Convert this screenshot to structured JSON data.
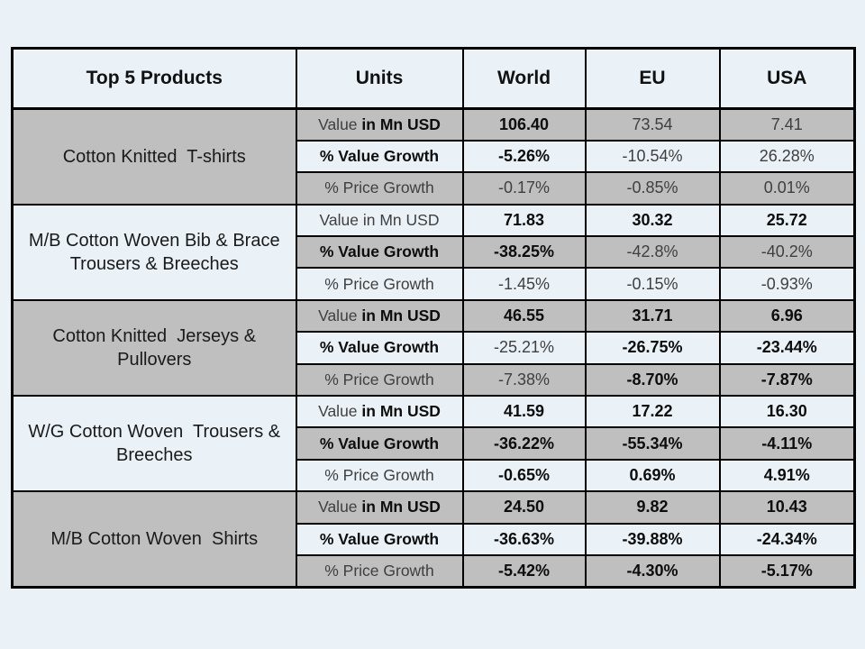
{
  "slide": {
    "background": "#eaf2f8"
  },
  "table": {
    "columns": [
      "Top 5 Products",
      "Units",
      "World",
      "EU",
      "USA"
    ],
    "colors": {
      "gray_row": "#bfbfbf",
      "light_row": "#eaf2f8",
      "header_bg": "#eaf2f8",
      "border": "#000000",
      "bold_text": "#0d0d0d",
      "regular_text": "#3f3f3f"
    },
    "unit_row_labels": [
      "Value in Mn USD",
      "% Value Growth",
      "% Price Growth"
    ],
    "products": [
      {
        "name": "Cotton Knitted  T-shirts",
        "rows": [
          {
            "units": [
              {
                "t": "Value ",
                "b": false
              },
              {
                "t": "in Mn USD",
                "b": true
              }
            ],
            "cells": [
              {
                "t": "106.40",
                "b": true
              },
              {
                "t": "73.54",
                "b": false
              },
              {
                "t": "7.41",
                "b": false
              }
            ]
          },
          {
            "units": [
              {
                "t": "% Value Growth",
                "b": true
              }
            ],
            "cells": [
              {
                "t": "-5.26%",
                "b": true
              },
              {
                "t": "-10.54%",
                "b": false
              },
              {
                "t": "26.28%",
                "b": false
              }
            ]
          },
          {
            "units": [
              {
                "t": "% Price Growth",
                "b": false
              }
            ],
            "cells": [
              {
                "t": "-0.17%",
                "b": false
              },
              {
                "t": "-0.85%",
                "b": false
              },
              {
                "t": "0.01%",
                "b": false
              }
            ]
          }
        ]
      },
      {
        "name": "M/B Cotton Woven Bib & Brace Trousers & Breeches",
        "rows": [
          {
            "units": [
              {
                "t": "Value in Mn USD",
                "b": false
              }
            ],
            "cells": [
              {
                "t": "71.83",
                "b": true
              },
              {
                "t": "30.32",
                "b": true
              },
              {
                "t": "25.72",
                "b": true
              }
            ]
          },
          {
            "units": [
              {
                "t": "% Value Growth",
                "b": true
              }
            ],
            "cells": [
              {
                "t": "-38.25%",
                "b": true
              },
              {
                "t": "-42.8%",
                "b": false
              },
              {
                "t": "-40.2%",
                "b": false
              }
            ]
          },
          {
            "units": [
              {
                "t": "% Price Growth",
                "b": false
              }
            ],
            "cells": [
              {
                "t": "-1.45%",
                "b": false
              },
              {
                "t": "-0.15%",
                "b": false
              },
              {
                "t": "-0.93%",
                "b": false
              }
            ]
          }
        ]
      },
      {
        "name": "Cotton Knitted  Jerseys & Pullovers",
        "rows": [
          {
            "units": [
              {
                "t": "Value ",
                "b": false
              },
              {
                "t": "in Mn USD",
                "b": true
              }
            ],
            "cells": [
              {
                "t": "46.55",
                "b": true
              },
              {
                "t": "31.71",
                "b": true
              },
              {
                "t": "6.96",
                "b": true
              }
            ]
          },
          {
            "units": [
              {
                "t": "% Value Growth",
                "b": true
              }
            ],
            "cells": [
              {
                "t": "-25.21%",
                "b": false
              },
              {
                "t": "-26.75%",
                "b": true
              },
              {
                "t": "-23.44%",
                "b": true
              }
            ]
          },
          {
            "units": [
              {
                "t": "% Price Growth",
                "b": false
              }
            ],
            "cells": [
              {
                "t": "-7.38%",
                "b": false
              },
              {
                "t": "-8.70%",
                "b": true
              },
              {
                "t": "-7.87%",
                "b": true
              }
            ]
          }
        ]
      },
      {
        "name": "W/G Cotton Woven  Trousers & Breeches",
        "rows": [
          {
            "units": [
              {
                "t": "Value ",
                "b": false
              },
              {
                "t": "in Mn USD",
                "b": true
              }
            ],
            "cells": [
              {
                "t": "41.59",
                "b": true
              },
              {
                "t": "17.22",
                "b": true
              },
              {
                "t": "16.30",
                "b": true
              }
            ]
          },
          {
            "units": [
              {
                "t": "% Value Growth",
                "b": true
              }
            ],
            "cells": [
              {
                "t": "-36.22%",
                "b": true
              },
              {
                "t": "-55.34%",
                "b": true
              },
              {
                "t": "-4.11%",
                "b": true
              }
            ]
          },
          {
            "units": [
              {
                "t": "% Price Growth",
                "b": false
              }
            ],
            "cells": [
              {
                "t": "-0.65%",
                "b": true
              },
              {
                "t": "0.69%",
                "b": true
              },
              {
                "t": "4.91%",
                "b": true
              }
            ]
          }
        ]
      },
      {
        "name": "M/B Cotton Woven  Shirts",
        "rows": [
          {
            "units": [
              {
                "t": "Value ",
                "b": false
              },
              {
                "t": "in Mn USD",
                "b": true
              }
            ],
            "cells": [
              {
                "t": "24.50",
                "b": true
              },
              {
                "t": "9.82",
                "b": true
              },
              {
                "t": "10.43",
                "b": true
              }
            ]
          },
          {
            "units": [
              {
                "t": "% Value Growth",
                "b": true
              }
            ],
            "cells": [
              {
                "t": "-36.63%",
                "b": true
              },
              {
                "t": "-39.88%",
                "b": true
              },
              {
                "t": "-24.34%",
                "b": true
              }
            ]
          },
          {
            "units": [
              {
                "t": "% Price Growth",
                "b": false
              }
            ],
            "cells": [
              {
                "t": "-5.42%",
                "b": true
              },
              {
                "t": "-4.30%",
                "b": true
              },
              {
                "t": "-5.17%",
                "b": true
              }
            ]
          }
        ]
      }
    ]
  },
  "chart_data": {
    "type": "table",
    "title": "Top 5 Products",
    "columns": [
      "Top 5 Products",
      "Units",
      "World",
      "EU",
      "USA"
    ],
    "rows": [
      [
        "Cotton Knitted T-shirts",
        "Value in Mn USD",
        "106.40",
        "73.54",
        "7.41"
      ],
      [
        "Cotton Knitted T-shirts",
        "% Value Growth",
        "-5.26%",
        "-10.54%",
        "26.28%"
      ],
      [
        "Cotton Knitted T-shirts",
        "% Price Growth",
        "-0.17%",
        "-0.85%",
        "0.01%"
      ],
      [
        "M/B Cotton Woven Bib & Brace Trousers & Breeches",
        "Value in Mn USD",
        "71.83",
        "30.32",
        "25.72"
      ],
      [
        "M/B Cotton Woven Bib & Brace Trousers & Breeches",
        "% Value Growth",
        "-38.25%",
        "-42.8%",
        "-40.2%"
      ],
      [
        "M/B Cotton Woven Bib & Brace Trousers & Breeches",
        "% Price Growth",
        "-1.45%",
        "-0.15%",
        "-0.93%"
      ],
      [
        "Cotton Knitted Jerseys & Pullovers",
        "Value in Mn USD",
        "46.55",
        "31.71",
        "6.96"
      ],
      [
        "Cotton Knitted Jerseys & Pullovers",
        "% Value Growth",
        "-25.21%",
        "-26.75%",
        "-23.44%"
      ],
      [
        "Cotton Knitted Jerseys & Pullovers",
        "% Price Growth",
        "-7.38%",
        "-8.70%",
        "-7.87%"
      ],
      [
        "W/G Cotton Woven Trousers & Breeches",
        "Value in Mn USD",
        "41.59",
        "17.22",
        "16.30"
      ],
      [
        "W/G Cotton Woven Trousers & Breeches",
        "% Value Growth",
        "-36.22%",
        "-55.34%",
        "-4.11%"
      ],
      [
        "W/G Cotton Woven Trousers & Breeches",
        "% Price Growth",
        "-0.65%",
        "0.69%",
        "4.91%"
      ],
      [
        "M/B Cotton Woven Shirts",
        "Value in Mn USD",
        "24.50",
        "9.82",
        "10.43"
      ],
      [
        "M/B Cotton Woven Shirts",
        "% Value Growth",
        "-36.63%",
        "-39.88%",
        "-24.34%"
      ],
      [
        "M/B Cotton Woven Shirts",
        "% Price Growth",
        "-5.42%",
        "-4.30%",
        "-5.17%"
      ]
    ]
  }
}
